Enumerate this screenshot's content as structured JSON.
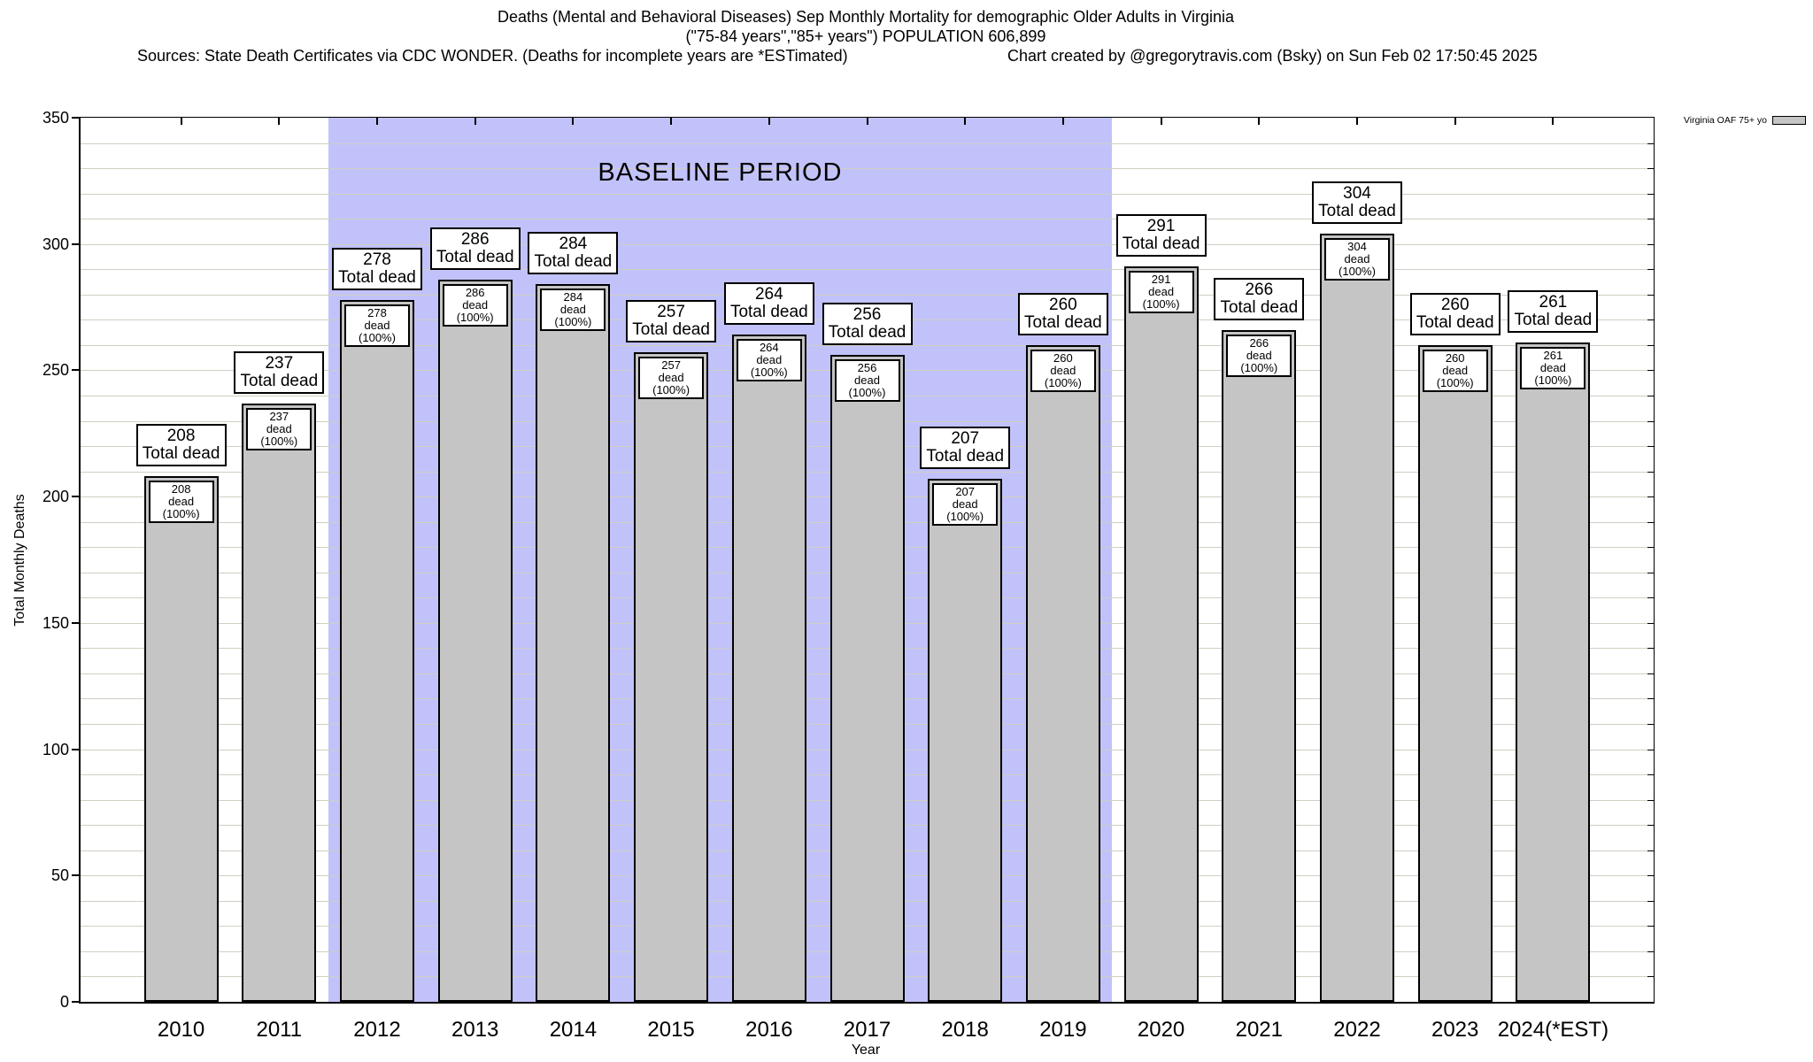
{
  "header": {
    "title": "Deaths (Mental and Behavioral Diseases) Sep Monthly Mortality for demographic Older Adults in Virginia",
    "subtitle": "(\"75-84 years\",\"85+ years\") POPULATION 606,899",
    "source_note": "Sources: State Death Certificates via CDC WONDER. (Deaths for incomplete years are *ESTimated)",
    "credit_note": "Chart created by @gregorytravis.com (Bsky) on Sun Feb 02 17:50:45 2025"
  },
  "chart_data": {
    "type": "bar",
    "title": "Deaths (Mental and Behavioral Diseases) Sep Monthly Mortality for demographic Older Adults in Virginia",
    "subtitle": "(\"75-84 years\",\"85+ years\") POPULATION 606,899",
    "series_name": "Virginia OAF 75+ yo",
    "categories": [
      "2010",
      "2011",
      "2012",
      "2013",
      "2014",
      "2015",
      "2016",
      "2017",
      "2018",
      "2019",
      "2020",
      "2021",
      "2022",
      "2023",
      "2024(*EST)"
    ],
    "values": [
      208,
      237,
      278,
      286,
      284,
      257,
      264,
      256,
      207,
      260,
      291,
      266,
      304,
      260,
      261
    ],
    "bar_label_line2": "Total dead",
    "inner_label_line2": "dead (100%)",
    "xlabel": "Year",
    "ylabel": "Total Monthly Deaths",
    "ylim": [
      0,
      350
    ],
    "y_major_step": 50,
    "y_minor_step": 10,
    "grid": true,
    "legend_position": "top-right-outside",
    "baseline_band": {
      "label": "BASELINE PERIOD",
      "start": "2012",
      "end": "2019"
    },
    "colors": {
      "bar_fill": "#c5c5c5",
      "bar_border": "#000000",
      "band": "#c2c2fb",
      "grid": "#cfcfc3",
      "box_bg": "#ffffff",
      "box_border": "#000000",
      "legend_swatch": "#c5c5c5"
    }
  }
}
